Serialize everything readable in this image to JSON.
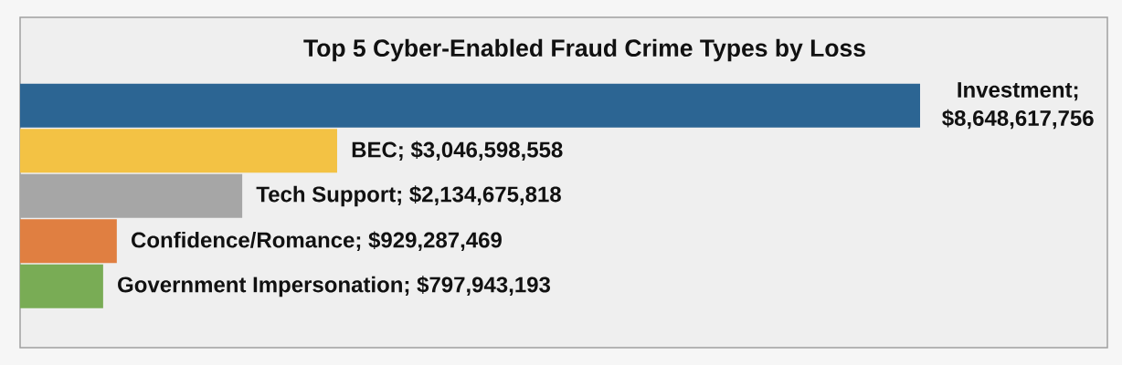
{
  "chart_data": {
    "type": "bar",
    "orientation": "horizontal",
    "title": "Top 5 Cyber-Enabled Fraud Crime Types by Loss",
    "categories": [
      null,
      null,
      null,
      null,
      null
    ],
    "values": [
      8648617756,
      3046598558,
      2134675818,
      929287469,
      797943193
    ],
    "colors": [
      "#2c6593",
      "#f3c244",
      "#a6a6a6",
      "#e07f41",
      "#79ac55"
    ],
    "value_labels": [
      "Investment; $8,648,617,756",
      "BEC; $3,046,598,558",
      "Tech Support; $2,134,675,818",
      "Confidence/Romance; $929,287,469",
      "Government Impersonation; $797,943,193"
    ],
    "tick_labels": false
  }
}
